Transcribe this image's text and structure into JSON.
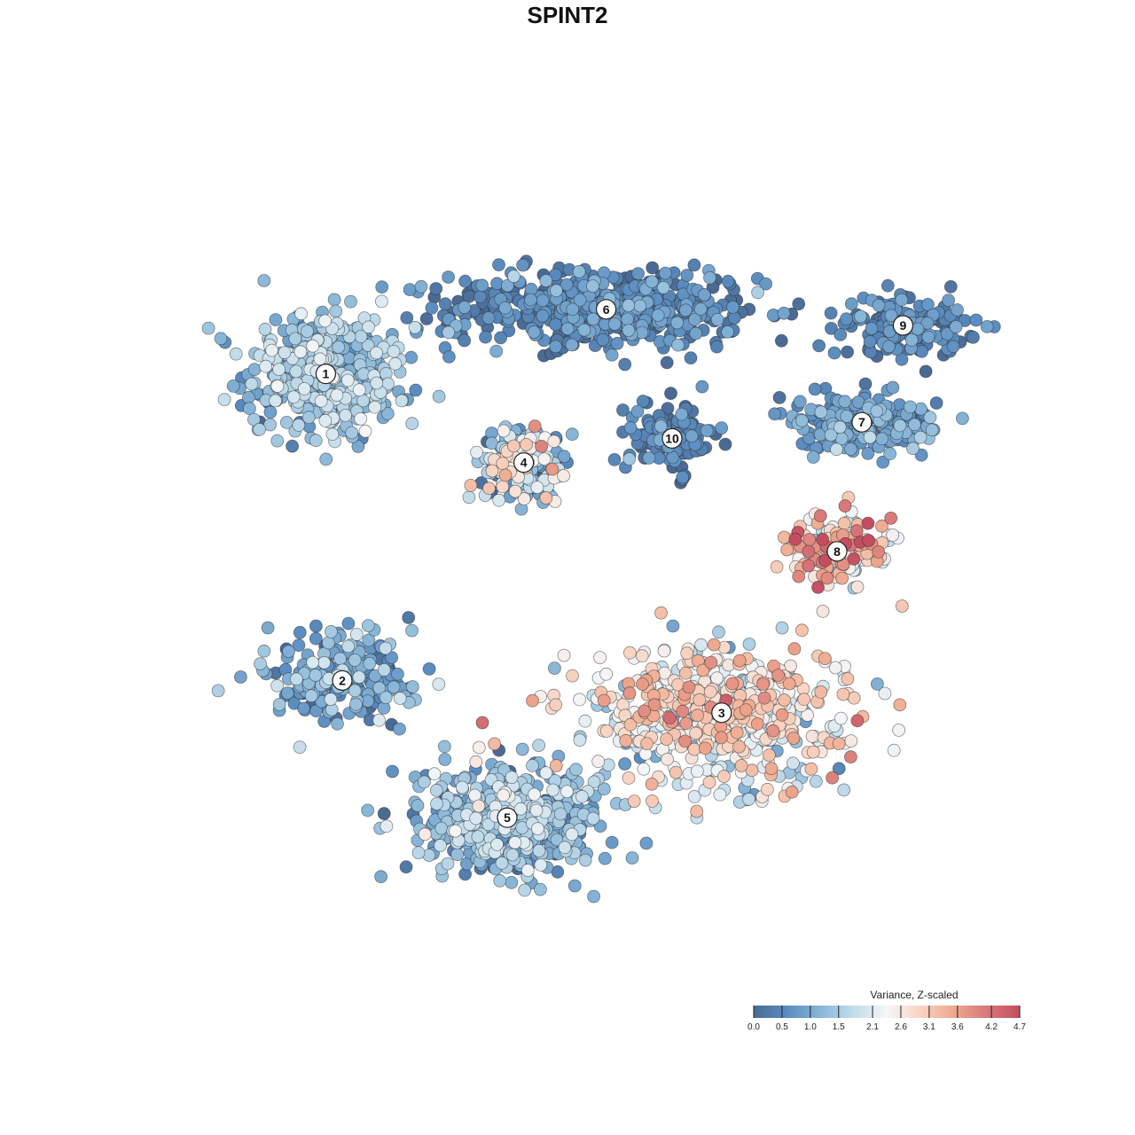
{
  "chart_data": {
    "type": "scatter",
    "title": "SPINT2",
    "xlabel": "",
    "ylabel": "",
    "grid": false,
    "legend": {
      "title": "Variance, Z-scaled",
      "position": "bottom-right",
      "range": [
        0,
        4.7
      ],
      "ticks": [
        "0.0",
        "0.5",
        "1.0",
        "1.5",
        "2.1",
        "2.6",
        "3.1",
        "3.6",
        "4.2",
        "4.7"
      ],
      "tick_values": [
        0.0,
        0.5,
        1.0,
        1.5,
        2.1,
        2.6,
        3.1,
        3.6,
        4.2,
        4.7
      ],
      "colors": [
        "#4a6a94",
        "#5b8dc0",
        "#88b6d8",
        "#c2dcea",
        "#f4f6f8",
        "#f8d4c2",
        "#eea98e",
        "#d9797a",
        "#c44e60"
      ]
    },
    "clusters": [
      {
        "label": "1",
        "cx": 0.18,
        "cy": 0.74,
        "sx": 0.09,
        "sy": 0.07,
        "n": 420,
        "mean": 1.3,
        "sd": 0.45
      },
      {
        "label": "6",
        "cx": 0.52,
        "cy": 0.82,
        "sx": 0.17,
        "sy": 0.045,
        "n": 560,
        "mean": 0.45,
        "sd": 0.35
      },
      {
        "label": "9",
        "cx": 0.88,
        "cy": 0.8,
        "sx": 0.07,
        "sy": 0.035,
        "n": 150,
        "mean": 0.45,
        "sd": 0.3
      },
      {
        "label": "7",
        "cx": 0.83,
        "cy": 0.68,
        "sx": 0.09,
        "sy": 0.03,
        "n": 190,
        "mean": 0.8,
        "sd": 0.35
      },
      {
        "label": "4",
        "cx": 0.42,
        "cy": 0.63,
        "sx": 0.045,
        "sy": 0.045,
        "n": 200,
        "mean": 1.5,
        "sd": 0.9
      },
      {
        "label": "10",
        "cx": 0.6,
        "cy": 0.66,
        "sx": 0.05,
        "sy": 0.04,
        "n": 120,
        "mean": 0.35,
        "sd": 0.3
      },
      {
        "label": "8",
        "cx": 0.8,
        "cy": 0.52,
        "sx": 0.06,
        "sy": 0.04,
        "n": 150,
        "mean": 2.9,
        "sd": 1.0
      },
      {
        "label": "2",
        "cx": 0.2,
        "cy": 0.36,
        "sx": 0.08,
        "sy": 0.05,
        "n": 200,
        "mean": 0.9,
        "sd": 0.55
      },
      {
        "label": "3",
        "cx": 0.66,
        "cy": 0.32,
        "sx": 0.15,
        "sy": 0.075,
        "n": 560,
        "mean": 2.4,
        "sd": 0.7
      },
      {
        "label": "5",
        "cx": 0.4,
        "cy": 0.19,
        "sx": 0.1,
        "sy": 0.065,
        "n": 480,
        "mean": 1.2,
        "sd": 0.5
      }
    ]
  }
}
